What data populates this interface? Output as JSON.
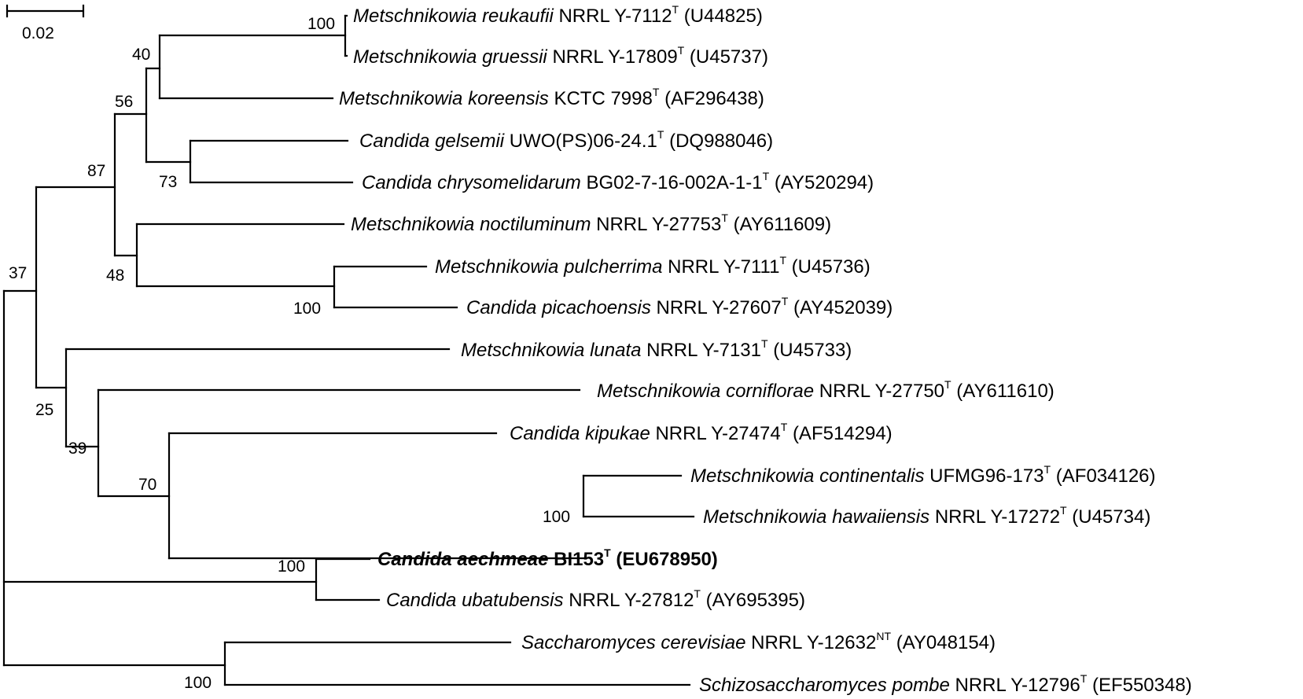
{
  "scale_bar": {
    "label": "0.02"
  },
  "bootstrap": [
    "100",
    "40",
    "56",
    "73",
    "87",
    "48",
    "100",
    "37",
    "25",
    "39",
    "70",
    "100",
    "100",
    "100"
  ],
  "taxa": [
    {
      "species": "Metschnikowia reukaufii",
      "strain": "NRRL Y-7112",
      "sup": "T",
      "acc": "(U44825)"
    },
    {
      "species": "Metschnikowia gruessii",
      "strain": "NRRL Y-17809",
      "sup": "T",
      "acc": "(U45737)"
    },
    {
      "species": "Metschnikowia koreensis",
      "strain": "KCTC 7998",
      "sup": "T",
      "acc": "(AF296438)"
    },
    {
      "species": "Candida gelsemii",
      "strain": "UWO(PS)06-24.1",
      "sup": "T",
      "acc": "(DQ988046)"
    },
    {
      "species": "Candida chrysomelidarum",
      "strain": "BG02-7-16-002A-1-1",
      "sup": "T",
      "acc": "(AY520294)"
    },
    {
      "species": "Metschnikowia noctiluminum",
      "strain": "NRRL Y-27753",
      "sup": "T",
      "acc": "(AY611609)"
    },
    {
      "species": "Metschnikowia pulcherrima",
      "strain": "NRRL Y-7111",
      "sup": "T",
      "acc": "(U45736)"
    },
    {
      "species": "Candida picachoensis",
      "strain": "NRRL Y-27607",
      "sup": "T",
      "acc": "(AY452039)"
    },
    {
      "species": "Metschnikowia lunata",
      "strain": "NRRL Y-7131",
      "sup": "T",
      "acc": "(U45733)"
    },
    {
      "species": "Metschnikowia corniflorae",
      "strain": "NRRL Y-27750",
      "sup": "T",
      "acc": "(AY611610)"
    },
    {
      "species": "Candida kipukae",
      "strain": "NRRL Y-27474",
      "sup": "T",
      "acc": "(AF514294)"
    },
    {
      "species": "Metschnikowia continentalis",
      "strain": "UFMG96-173",
      "sup": "T",
      "acc": "(AF034126)"
    },
    {
      "species": "Metschnikowia hawaiiensis",
      "strain": "NRRL Y-17272",
      "sup": "T",
      "acc": "(U45734)"
    },
    {
      "species": "Candida aechmeae",
      "strain": "BI153",
      "sup": "T",
      "acc": "(EU678950)"
    },
    {
      "species": "Candida ubatubensis",
      "strain": "NRRL Y-27812",
      "sup": "T",
      "acc": "(AY695395)"
    },
    {
      "species": "Saccharomyces cerevisiae",
      "strain": "NRRL Y-12632",
      "sup": "NT",
      "acc": "(AY048154)"
    },
    {
      "species": "Schizosaccharomyces pombe",
      "strain": "NRRL Y-12796",
      "sup": "T",
      "acc": "(EF550348)"
    }
  ]
}
